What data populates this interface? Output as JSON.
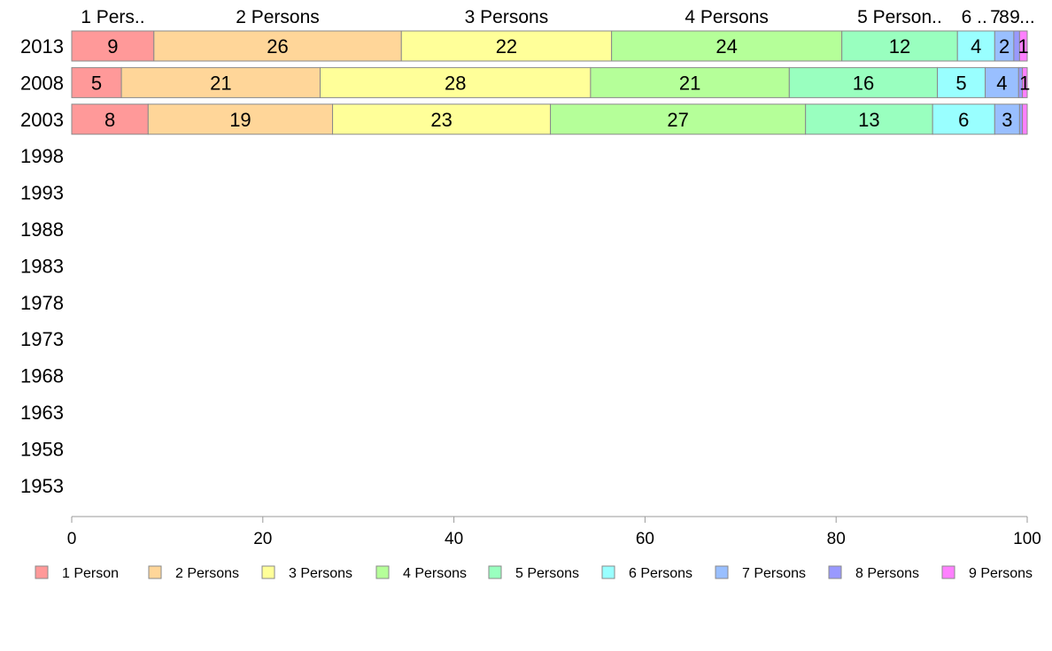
{
  "chart_data": {
    "type": "bar",
    "orientation": "horizontal",
    "stacked": true,
    "categories": [
      "2013",
      "2008",
      "2003",
      "1998",
      "1993",
      "1988",
      "1983",
      "1978",
      "1973",
      "1968",
      "1963",
      "1958",
      "1953"
    ],
    "series": [
      {
        "name": "1 Person",
        "color": "#ff9999",
        "values": [
          8.6,
          5.2,
          8.0,
          null,
          null,
          null,
          null,
          null,
          null,
          null,
          null,
          null,
          null
        ],
        "labels": [
          "9",
          "5",
          "8"
        ]
      },
      {
        "name": "2 Persons",
        "color": "#ffd699",
        "values": [
          25.9,
          20.8,
          19.3,
          null,
          null,
          null,
          null,
          null,
          null,
          null,
          null,
          null,
          null
        ],
        "labels": [
          "26",
          "21",
          "19"
        ]
      },
      {
        "name": "3 Persons",
        "color": "#ffff99",
        "values": [
          22.0,
          28.3,
          22.8,
          null,
          null,
          null,
          null,
          null,
          null,
          null,
          null,
          null,
          null
        ],
        "labels": [
          "22",
          "28",
          "23"
        ]
      },
      {
        "name": "4 Persons",
        "color": "#b5ff99",
        "values": [
          24.1,
          20.8,
          26.7,
          null,
          null,
          null,
          null,
          null,
          null,
          null,
          null,
          null,
          null
        ],
        "labels": [
          "24",
          "21",
          "27"
        ]
      },
      {
        "name": "5 Persons",
        "color": "#99ffbf",
        "values": [
          12.1,
          15.5,
          13.3,
          null,
          null,
          null,
          null,
          null,
          null,
          null,
          null,
          null,
          null
        ],
        "labels": [
          "12",
          "16",
          "13"
        ]
      },
      {
        "name": "6 Persons",
        "color": "#99ffff",
        "values": [
          3.9,
          5.0,
          6.5,
          null,
          null,
          null,
          null,
          null,
          null,
          null,
          null,
          null,
          null
        ],
        "labels": [
          "4",
          "5",
          "6"
        ]
      },
      {
        "name": "7 Persons",
        "color": "#99bfff",
        "values": [
          2.0,
          3.5,
          2.6,
          null,
          null,
          null,
          null,
          null,
          null,
          null,
          null,
          null,
          null
        ],
        "labels": [
          "2",
          "4",
          "3"
        ]
      },
      {
        "name": "8 Persons",
        "color": "#9999ff",
        "values": [
          0.6,
          0.4,
          0.3,
          null,
          null,
          null,
          null,
          null,
          null,
          null,
          null,
          null,
          null
        ],
        "labels": [
          "",
          "",
          ""
        ]
      },
      {
        "name": "9 Persons",
        "color": "#ff80ff",
        "values": [
          0.8,
          0.5,
          0.5,
          null,
          null,
          null,
          null,
          null,
          null,
          null,
          null,
          null,
          null
        ],
        "labels": [
          "1",
          "1",
          ""
        ]
      }
    ],
    "top_labels": [
      "1 Pers..",
      "2 Persons",
      "3 Persons",
      "4 Persons",
      "5 Person..",
      "6 ..",
      "7",
      "8",
      "9",
      "..."
    ],
    "xlim": [
      0,
      100
    ],
    "xticks": [
      "0",
      "20",
      "40",
      "60",
      "80",
      "100"
    ],
    "grid": false,
    "legend_position": "bottom",
    "title": "",
    "xlabel": "",
    "ylabel": ""
  }
}
